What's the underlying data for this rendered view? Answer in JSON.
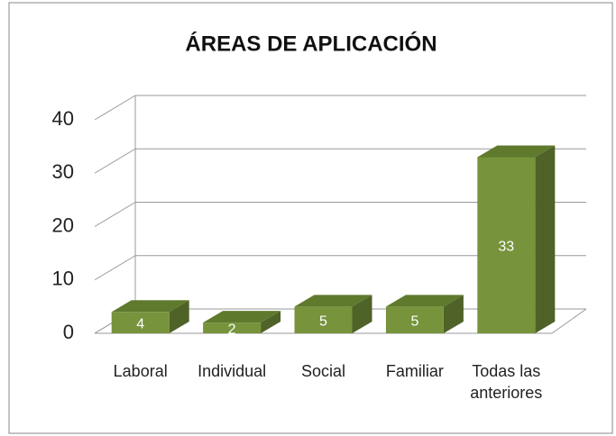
{
  "chart_data": {
    "type": "bar3d",
    "title": "ÁREAS DE APLICACIÓN",
    "categories": [
      "Laboral",
      "Individual",
      "Social",
      "Familiar",
      "Todas las anteriores"
    ],
    "values": [
      4,
      2,
      5,
      5,
      33
    ],
    "color": "#77933c",
    "ylim": [
      0,
      40
    ],
    "yticks": [
      0,
      10,
      20,
      30,
      40
    ],
    "grid": true
  }
}
